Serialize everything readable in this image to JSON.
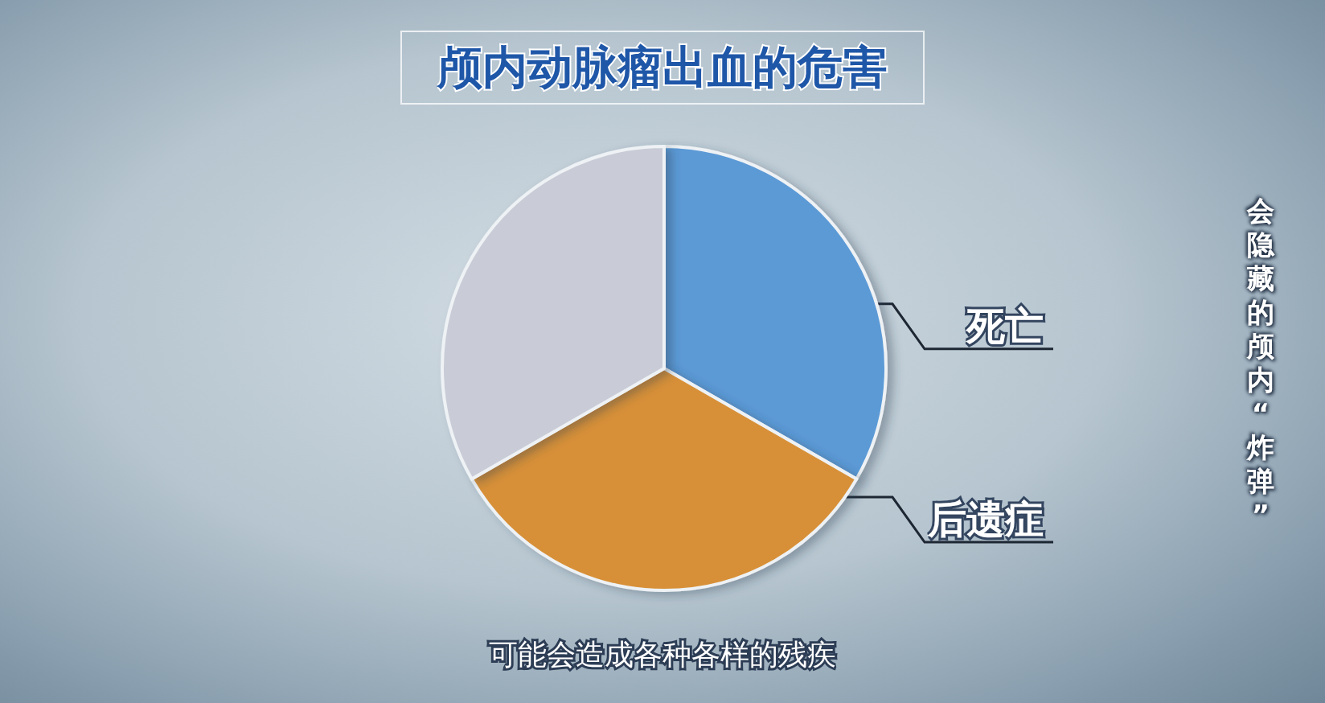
{
  "chart_data": {
    "type": "pie",
    "title": "颅内动脉瘤出血的危害",
    "categories": [
      "死亡",
      "后遗症",
      null
    ],
    "values": [
      33.3,
      33.4,
      33.3
    ],
    "colors": [
      "#5b9ad6",
      "#d79038",
      "#c9ccd6"
    ],
    "annotations": [
      "可能会造成各种各样的残疾",
      "会隐藏的颅内“炸弹”"
    ]
  }
}
